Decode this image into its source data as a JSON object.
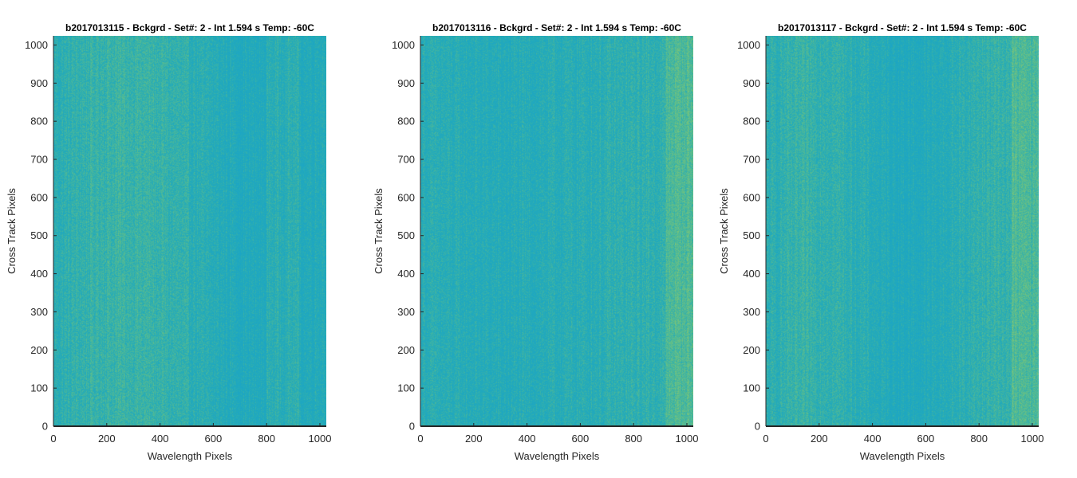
{
  "figure": {
    "background": "#ffffff",
    "axis_color": "#262626",
    "colormap": [
      "#1aa4c8",
      "#25abb8",
      "#5cbd8c",
      "#a7cf5d"
    ]
  },
  "chart_data": [
    {
      "type": "heatmap",
      "title": "b2017013115 - Bckgrd - Set#: 2 - Int 1.594 s Temp: -60C",
      "xlabel": "Wavelength Pixels",
      "ylabel": "Cross Track Pixels",
      "xlim": [
        0,
        1024
      ],
      "ylim": [
        0,
        1024
      ],
      "xticks": [
        0,
        200,
        400,
        600,
        800,
        1000
      ],
      "yticks": [
        0,
        100,
        200,
        300,
        400,
        500,
        600,
        700,
        800,
        900,
        1000
      ],
      "grid": false
    },
    {
      "type": "heatmap",
      "title": "b2017013116 - Bckgrd - Set#: 2 - Int 1.594 s Temp: -60C",
      "xlabel": "Wavelength Pixels",
      "ylabel": "Cross Track Pixels",
      "xlim": [
        0,
        1024
      ],
      "ylim": [
        0,
        1024
      ],
      "xticks": [
        0,
        200,
        400,
        600,
        800,
        1000
      ],
      "yticks": [
        0,
        100,
        200,
        300,
        400,
        500,
        600,
        700,
        800,
        900,
        1000
      ],
      "grid": false
    },
    {
      "type": "heatmap",
      "title": "b2017013117 - Bckgrd - Set#: 2 - Int 1.594 s Temp: -60C",
      "xlabel": "Wavelength Pixels",
      "ylabel": "Cross Track Pixels",
      "xlim": [
        0,
        1024
      ],
      "ylim": [
        0,
        1024
      ],
      "xticks": [
        0,
        200,
        400,
        600,
        800,
        1000
      ],
      "yticks": [
        0,
        100,
        200,
        300,
        400,
        500,
        600,
        700,
        800,
        900,
        1000
      ],
      "grid": false
    }
  ]
}
